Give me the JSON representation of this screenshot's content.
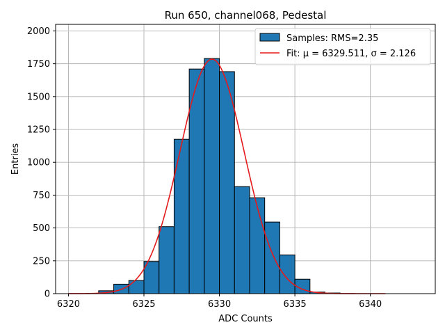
{
  "chart_data": {
    "type": "bar",
    "title": "Run 650, channel068, Pedestal",
    "xlabel": "ADC Counts",
    "ylabel": "Entries",
    "xlim": [
      6319.15,
      6344.3
    ],
    "ylim": [
      0,
      2050
    ],
    "grid": true,
    "legend_position": "top-right",
    "x_ticks": [
      6320,
      6325,
      6330,
      6335,
      6340
    ],
    "x_tick_labels": [
      "6320",
      "6325",
      "6330",
      "6335",
      "6340"
    ],
    "y_ticks": [
      0,
      250,
      500,
      750,
      1000,
      1250,
      1500,
      1750,
      2000
    ],
    "y_tick_labels": [
      "0",
      "250",
      "500",
      "750",
      "1000",
      "1250",
      "1500",
      "1750",
      "2000"
    ],
    "histogram": {
      "name": "Samples: RMS=2.35",
      "color": "#1f77b4",
      "edge_color": "#000000",
      "bin_edges": [
        6322,
        6323,
        6324,
        6325,
        6326,
        6327,
        6328,
        6329,
        6330,
        6331,
        6332,
        6333,
        6334,
        6335,
        6336,
        6337,
        6338
      ],
      "counts": [
        22,
        72,
        100,
        245,
        510,
        1175,
        1710,
        1790,
        1690,
        815,
        730,
        545,
        295,
        110,
        12,
        5
      ]
    },
    "fit": {
      "name": "Fit: μ = 6329.511, σ = 2.126",
      "color": "#e41a1c",
      "mu": 6329.511,
      "sigma": 2.126,
      "amplitude": 1785,
      "x_range": [
        6320,
        6341
      ]
    }
  }
}
